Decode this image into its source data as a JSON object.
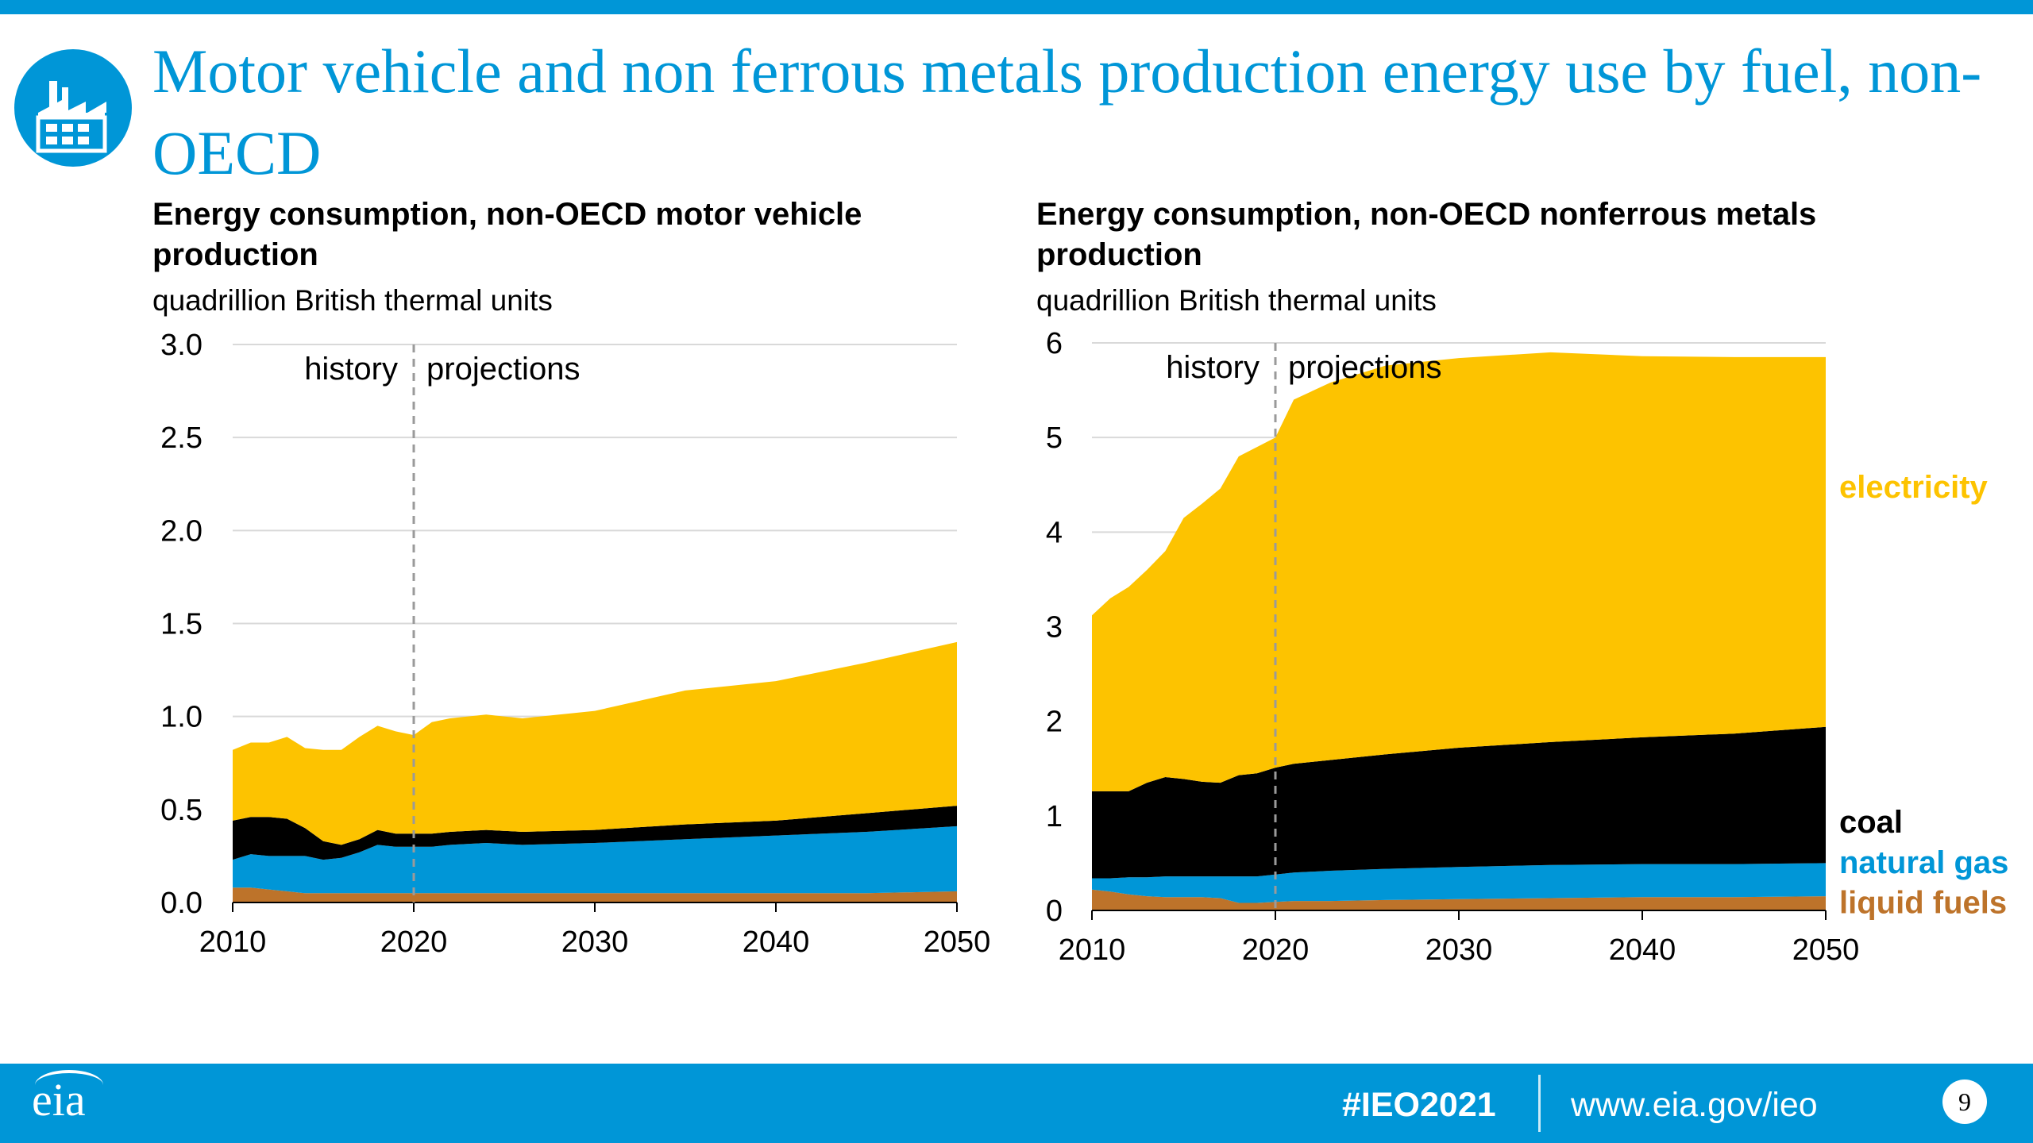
{
  "slide": {
    "title": "Motor vehicle and non ferrous metals production energy use by fuel, non-OECD",
    "icon": "factory-icon"
  },
  "footer": {
    "logo_text": "eia",
    "hashtag": "#IEO2021",
    "url": "www.eia.gov/ieo",
    "page_number": "9"
  },
  "colors": {
    "accent": "#0096d7",
    "electricity": "#fdc300",
    "coal": "#000000",
    "natural_gas": "#0096d7",
    "liquid_fuels": "#bd732a",
    "grid": "#d9d9d9"
  },
  "annotations": {
    "history": "history",
    "projections": "projections"
  },
  "legend": {
    "electricity": "electricity",
    "coal": "coal",
    "natural_gas": "natural gas",
    "liquid_fuels": "liquid fuels"
  },
  "chart_data": [
    {
      "type": "area",
      "stacked": true,
      "title": "Energy consumption, non-OECD motor vehicle production",
      "units": "quadrillion British thermal units",
      "x": [
        2010,
        2011,
        2012,
        2013,
        2014,
        2015,
        2016,
        2017,
        2018,
        2019,
        2020,
        2021,
        2022,
        2024,
        2026,
        2030,
        2035,
        2040,
        2045,
        2050
      ],
      "x_ticks": [
        "2010",
        "2020",
        "2030",
        "2040",
        "2050"
      ],
      "y_ticks": [
        "0.0",
        "0.5",
        "1.0",
        "1.5",
        "2.0",
        "2.5",
        "3.0"
      ],
      "ylim": [
        0,
        3.0
      ],
      "history_end": 2020,
      "series": [
        {
          "key": "liquid_fuels",
          "values": [
            0.08,
            0.08,
            0.07,
            0.06,
            0.05,
            0.05,
            0.05,
            0.05,
            0.05,
            0.05,
            0.05,
            0.05,
            0.05,
            0.05,
            0.05,
            0.05,
            0.05,
            0.05,
            0.05,
            0.06
          ]
        },
        {
          "key": "natural_gas",
          "values": [
            0.15,
            0.18,
            0.18,
            0.19,
            0.2,
            0.18,
            0.19,
            0.22,
            0.26,
            0.25,
            0.25,
            0.25,
            0.26,
            0.27,
            0.26,
            0.27,
            0.29,
            0.31,
            0.33,
            0.35
          ]
        },
        {
          "key": "coal",
          "values": [
            0.21,
            0.2,
            0.21,
            0.2,
            0.15,
            0.1,
            0.07,
            0.07,
            0.08,
            0.07,
            0.07,
            0.07,
            0.07,
            0.07,
            0.07,
            0.07,
            0.08,
            0.08,
            0.1,
            0.11
          ]
        },
        {
          "key": "electricity",
          "values": [
            0.38,
            0.4,
            0.4,
            0.44,
            0.43,
            0.49,
            0.51,
            0.55,
            0.56,
            0.55,
            0.53,
            0.6,
            0.61,
            0.62,
            0.61,
            0.64,
            0.72,
            0.75,
            0.81,
            0.88
          ]
        }
      ]
    },
    {
      "type": "area",
      "stacked": true,
      "title": "Energy consumption, non-OECD nonferrous metals production",
      "units": "quadrillion British thermal units",
      "x": [
        2010,
        2011,
        2012,
        2013,
        2014,
        2015,
        2016,
        2017,
        2018,
        2019,
        2020,
        2021,
        2023,
        2026,
        2030,
        2035,
        2040,
        2045,
        2050
      ],
      "x_ticks": [
        "2010",
        "2020",
        "2030",
        "2040",
        "2050"
      ],
      "y_ticks": [
        "0",
        "1",
        "2",
        "3",
        "4",
        "5",
        "6"
      ],
      "ylim": [
        0,
        6
      ],
      "history_end": 2020,
      "series": [
        {
          "key": "liquid_fuels",
          "values": [
            0.22,
            0.2,
            0.17,
            0.15,
            0.14,
            0.14,
            0.14,
            0.13,
            0.08,
            0.08,
            0.09,
            0.1,
            0.1,
            0.11,
            0.12,
            0.13,
            0.14,
            0.14,
            0.15
          ]
        },
        {
          "key": "natural_gas",
          "values": [
            0.12,
            0.14,
            0.18,
            0.2,
            0.22,
            0.22,
            0.22,
            0.23,
            0.28,
            0.28,
            0.29,
            0.3,
            0.32,
            0.33,
            0.34,
            0.35,
            0.35,
            0.35,
            0.35
          ]
        },
        {
          "key": "coal",
          "values": [
            0.92,
            0.92,
            0.91,
            1.0,
            1.05,
            1.03,
            1.0,
            0.99,
            1.07,
            1.09,
            1.13,
            1.15,
            1.17,
            1.21,
            1.26,
            1.3,
            1.34,
            1.38,
            1.44
          ]
        },
        {
          "key": "electricity",
          "values": [
            1.86,
            2.04,
            2.16,
            2.25,
            2.39,
            2.76,
            2.94,
            3.11,
            3.37,
            3.45,
            3.49,
            3.85,
            3.99,
            4.11,
            4.12,
            4.12,
            4.03,
            3.98,
            3.91
          ]
        }
      ]
    }
  ]
}
